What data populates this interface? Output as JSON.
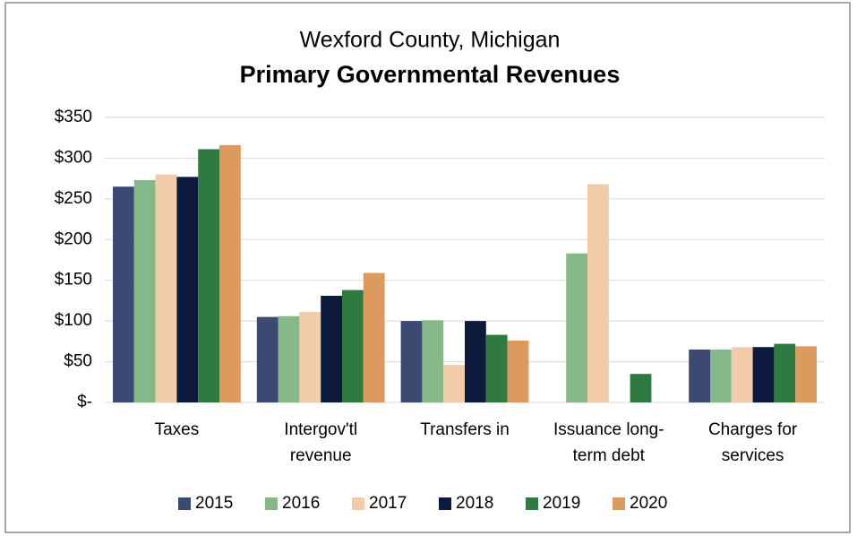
{
  "chart_data": {
    "type": "bar",
    "subtitle": "Wexford County, Michigan",
    "title": "Primary Governmental Revenues",
    "categories": [
      [
        "Taxes"
      ],
      [
        "Intergov'tl",
        "revenue"
      ],
      [
        "Transfers in"
      ],
      [
        "Issuance long-",
        "term debt"
      ],
      [
        "Charges for",
        "services"
      ]
    ],
    "series": [
      {
        "name": "2015",
        "color": "#3b4a72",
        "values": [
          265,
          105,
          100,
          null,
          65
        ]
      },
      {
        "name": "2016",
        "color": "#85b98a",
        "values": [
          273,
          106,
          101,
          183,
          65
        ]
      },
      {
        "name": "2017",
        "color": "#f2cca9",
        "values": [
          280,
          111,
          46,
          268,
          68
        ]
      },
      {
        "name": "2018",
        "color": "#0e1a3d",
        "values": [
          277,
          131,
          100,
          null,
          68
        ]
      },
      {
        "name": "2019",
        "color": "#2f7a40",
        "values": [
          311,
          138,
          83,
          35,
          72
        ]
      },
      {
        "name": "2020",
        "color": "#dd9a5d",
        "values": [
          316,
          159,
          76,
          null,
          69
        ]
      }
    ],
    "ylim": [
      0,
      350
    ],
    "yticks": [
      {
        "value": 0,
        "label": "$-"
      },
      {
        "value": 50,
        "label": "$50"
      },
      {
        "value": 100,
        "label": "$100"
      },
      {
        "value": 150,
        "label": "$150"
      },
      {
        "value": 200,
        "label": "$200"
      },
      {
        "value": 250,
        "label": "$250"
      },
      {
        "value": 300,
        "label": "$300"
      },
      {
        "value": 350,
        "label": "$350"
      }
    ],
    "grid": true,
    "legend": "bottom"
  }
}
